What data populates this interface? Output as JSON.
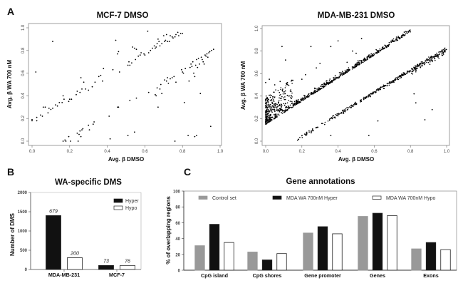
{
  "chart_data": [
    {
      "id": "A1",
      "panel": "A",
      "type": "scatter",
      "title": "MCF-7 DMSO",
      "xlabel": "Avg. β DMSO",
      "ylabel": "Avg. β WA 700 nM",
      "xlim": [
        0,
        1
      ],
      "ylim": [
        0,
        1
      ],
      "xticks": [
        "0.0",
        "0.2",
        "0.4",
        "0.6",
        "0.8",
        "1.0"
      ],
      "yticks": [
        "0.0",
        "0.2",
        "0.4",
        "0.6",
        "0.8",
        "1.0"
      ],
      "grid": false,
      "points": [
        [
          0.0,
          0.18
        ],
        [
          0.0,
          0.19
        ],
        [
          0.02,
          0.61
        ],
        [
          0.025,
          0.18
        ],
        [
          0.025,
          0.21
        ],
        [
          0.045,
          0.23
        ],
        [
          0.055,
          0.22
        ],
        [
          0.06,
          0.3
        ],
        [
          0.07,
          0.3
        ],
        [
          0.085,
          0.25
        ],
        [
          0.09,
          0.29
        ],
        [
          0.1,
          0.28
        ],
        [
          0.11,
          0.88
        ],
        [
          0.11,
          0.29
        ],
        [
          0.125,
          0.32
        ],
        [
          0.135,
          0.31
        ],
        [
          0.145,
          0.34
        ],
        [
          0.16,
          0.34
        ],
        [
          0.165,
          0.4
        ],
        [
          0.17,
          0.37
        ],
        [
          0.195,
          0.35
        ],
        [
          0.2,
          0.37
        ],
        [
          0.21,
          0.37
        ],
        [
          0.235,
          0.41
        ],
        [
          0.24,
          0.44
        ],
        [
          0.255,
          0.43
        ],
        [
          0.26,
          0.56
        ],
        [
          0.265,
          0.46
        ],
        [
          0.275,
          0.52
        ],
        [
          0.285,
          0.46
        ],
        [
          0.3,
          0.45
        ],
        [
          0.32,
          0.48
        ],
        [
          0.335,
          0.52
        ],
        [
          0.355,
          0.57
        ],
        [
          0.365,
          0.58
        ],
        [
          0.375,
          0.53
        ],
        [
          0.38,
          0.64
        ],
        [
          0.43,
          0.63
        ],
        [
          0.445,
          0.89
        ],
        [
          0.455,
          0.77
        ],
        [
          0.46,
          0.79
        ],
        [
          0.465,
          0.61
        ],
        [
          0.51,
          0.67
        ],
        [
          0.515,
          0.7
        ],
        [
          0.52,
          0.67
        ],
        [
          0.53,
          0.69
        ],
        [
          0.535,
          0.83
        ],
        [
          0.545,
          0.82
        ],
        [
          0.55,
          0.72
        ],
        [
          0.555,
          0.81
        ],
        [
          0.565,
          0.75
        ],
        [
          0.575,
          0.76
        ],
        [
          0.58,
          0.78
        ],
        [
          0.595,
          0.77
        ],
        [
          0.6,
          0.76
        ],
        [
          0.615,
          0.97
        ],
        [
          0.62,
          0.78
        ],
        [
          0.63,
          0.8
        ],
        [
          0.64,
          0.82
        ],
        [
          0.65,
          0.84
        ],
        [
          0.655,
          0.82
        ],
        [
          0.66,
          0.83
        ],
        [
          0.665,
          0.86
        ],
        [
          0.67,
          0.9
        ],
        [
          0.675,
          0.88
        ],
        [
          0.68,
          0.84
        ],
        [
          0.69,
          0.86
        ],
        [
          0.7,
          0.93
        ],
        [
          0.705,
          0.88
        ],
        [
          0.71,
          0.89
        ],
        [
          0.715,
          0.94
        ],
        [
          0.72,
          0.88
        ],
        [
          0.73,
          0.88
        ],
        [
          0.735,
          0.93
        ],
        [
          0.745,
          0.92
        ],
        [
          0.75,
          0.91
        ],
        [
          0.76,
          0.92
        ],
        [
          0.765,
          0.94
        ],
        [
          0.775,
          0.96
        ],
        [
          0.78,
          0.93
        ],
        [
          0.79,
          0.95
        ],
        [
          0.8,
          0.95
        ],
        [
          0.165,
          0.0
        ],
        [
          0.175,
          0.01
        ],
        [
          0.18,
          0.0
        ],
        [
          0.195,
          0.04
        ],
        [
          0.205,
          0.0
        ],
        [
          0.24,
          0.07
        ],
        [
          0.245,
          0.0
        ],
        [
          0.25,
          0.06
        ],
        [
          0.255,
          0.09
        ],
        [
          0.26,
          0.04
        ],
        [
          0.265,
          0.1
        ],
        [
          0.27,
          0.11
        ],
        [
          0.3,
          0.14
        ],
        [
          0.305,
          0.1
        ],
        [
          0.325,
          0.15
        ],
        [
          0.33,
          0.17
        ],
        [
          0.41,
          0.22
        ],
        [
          0.415,
          0.02
        ],
        [
          0.455,
          0.3
        ],
        [
          0.46,
          0.3
        ],
        [
          0.51,
          0.05
        ],
        [
          0.52,
          0.36
        ],
        [
          0.545,
          0.08
        ],
        [
          0.555,
          0.38
        ],
        [
          0.62,
          0.43
        ],
        [
          0.655,
          0.41
        ],
        [
          0.66,
          0.4
        ],
        [
          0.665,
          0.47
        ],
        [
          0.67,
          0.3
        ],
        [
          0.68,
          0.46
        ],
        [
          0.685,
          0.5
        ],
        [
          0.69,
          0.42
        ],
        [
          0.705,
          0.54
        ],
        [
          0.715,
          0.53
        ],
        [
          0.72,
          0.56
        ],
        [
          0.725,
          0.51
        ],
        [
          0.735,
          0.55
        ],
        [
          0.745,
          0.56
        ],
        [
          0.755,
          0.57
        ],
        [
          0.76,
          0.0
        ],
        [
          0.765,
          0.52
        ],
        [
          0.795,
          0.63
        ],
        [
          0.8,
          0.61
        ],
        [
          0.805,
          0.6
        ],
        [
          0.81,
          0.34
        ],
        [
          0.815,
          0.64
        ],
        [
          0.83,
          0.05
        ],
        [
          0.835,
          0.53
        ],
        [
          0.84,
          0.65
        ],
        [
          0.845,
          0.68
        ],
        [
          0.85,
          0.66
        ],
        [
          0.855,
          0.7
        ],
        [
          0.86,
          0.6
        ],
        [
          0.865,
          0.04
        ],
        [
          0.865,
          0.57
        ],
        [
          0.87,
          0.67
        ],
        [
          0.875,
          0.72
        ],
        [
          0.875,
          0.05
        ],
        [
          0.88,
          0.65
        ],
        [
          0.885,
          0.73
        ],
        [
          0.89,
          0.68
        ],
        [
          0.895,
          0.42
        ],
        [
          0.9,
          0.74
        ],
        [
          0.905,
          0.72
        ],
        [
          0.91,
          0.7
        ],
        [
          0.915,
          0.68
        ],
        [
          0.92,
          0.76
        ],
        [
          0.925,
          0.75
        ],
        [
          0.93,
          0.77
        ],
        [
          0.935,
          0.74
        ],
        [
          0.94,
          0.78
        ],
        [
          0.945,
          0.79
        ],
        [
          0.95,
          0.13
        ],
        [
          0.955,
          0.8
        ],
        [
          0.965,
          0.81
        ]
      ]
    },
    {
      "id": "A2",
      "panel": "A",
      "type": "scatter",
      "title": "MDA-MB-231 DMSO",
      "xlabel": "Avg. β DMSO",
      "ylabel": "Avg. β WA 700 nM",
      "xlim": [
        0,
        1
      ],
      "ylim": [
        0,
        1
      ],
      "xticks": [
        "0.0",
        "0.2",
        "0.4",
        "0.6",
        "0.8",
        "1.0"
      ],
      "yticks": [
        "0.0",
        "0.2",
        "0.4",
        "0.6",
        "0.8",
        "1.0"
      ],
      "grid": false,
      "points_note": "dense cloud; upper band from (0,0.15) to (0.8,0.97) with many points clustered near x 0-0.15, y 0.15-0.45; lower band from (0.15,0) to (1.0,0.83)",
      "points": [
        [
          0.09,
          0.84
        ],
        [
          0.11,
          0.72
        ],
        [
          0.25,
          0.84
        ],
        [
          0.36,
          0.84
        ],
        [
          0.4,
          0.89
        ],
        [
          0.53,
          0.91
        ],
        [
          0.0,
          0.52
        ],
        [
          0.02,
          0.55
        ],
        [
          0.05,
          0.5
        ],
        [
          0.08,
          0.53
        ],
        [
          0.12,
          0.52
        ],
        [
          0.15,
          0.54
        ],
        [
          0.2,
          0.55
        ],
        [
          0.22,
          0.59
        ],
        [
          0.28,
          0.65
        ],
        [
          0.3,
          0.69
        ],
        [
          0.45,
          0.7
        ],
        [
          0.48,
          0.8
        ],
        [
          0.5,
          0.78
        ],
        [
          0.57,
          0.05
        ],
        [
          0.62,
          0.18
        ],
        [
          0.82,
          0.42
        ],
        [
          0.83,
          0.34
        ],
        [
          0.88,
          0.19
        ],
        [
          0.92,
          0.28
        ],
        [
          0.36,
          0.05
        ]
      ]
    },
    {
      "id": "B",
      "panel": "B",
      "type": "bar",
      "title": "WA-specific DMS",
      "xlabel": "",
      "ylabel": "Number of DMS",
      "ylim": [
        0,
        2000
      ],
      "yticks": [
        "0",
        "500",
        "1000",
        "1500",
        "2000"
      ],
      "categories": [
        "MDA-MB-231",
        "MCF-7"
      ],
      "series": [
        {
          "name": "Hyper",
          "color": "#111111",
          "values": [
            1400,
            105
          ],
          "labels": [
            "679",
            "73"
          ]
        },
        {
          "name": "Hypo",
          "color": "#ffffff",
          "values": [
            305,
            105
          ],
          "labels": [
            "200",
            "76"
          ]
        }
      ],
      "legend": "top-right",
      "grid": false
    },
    {
      "id": "C",
      "panel": "C",
      "type": "bar",
      "title": "Gene annotations",
      "xlabel": "",
      "ylabel": "% of overlapping regions",
      "ylim": [
        0,
        100
      ],
      "yticks": [
        "0",
        "20",
        "40",
        "60",
        "80",
        "100"
      ],
      "categories": [
        "CpG island",
        "CpG shores",
        "Gene promoter",
        "Genes",
        "Exons"
      ],
      "series": [
        {
          "name": "Control set",
          "color": "#999999",
          "values": [
            31,
            23,
            47,
            68,
            27
          ]
        },
        {
          "name": "MDA WA 700nM Hyper",
          "color": "#111111",
          "values": [
            58,
            13,
            55,
            72,
            35
          ]
        },
        {
          "name": "MDA WA 700nM Hypo",
          "color": "#ffffff",
          "values": [
            35,
            21,
            46,
            69,
            26
          ]
        }
      ],
      "legend": "top",
      "grid": false
    }
  ],
  "panels": {
    "A": "A",
    "B": "B",
    "C": "C"
  }
}
